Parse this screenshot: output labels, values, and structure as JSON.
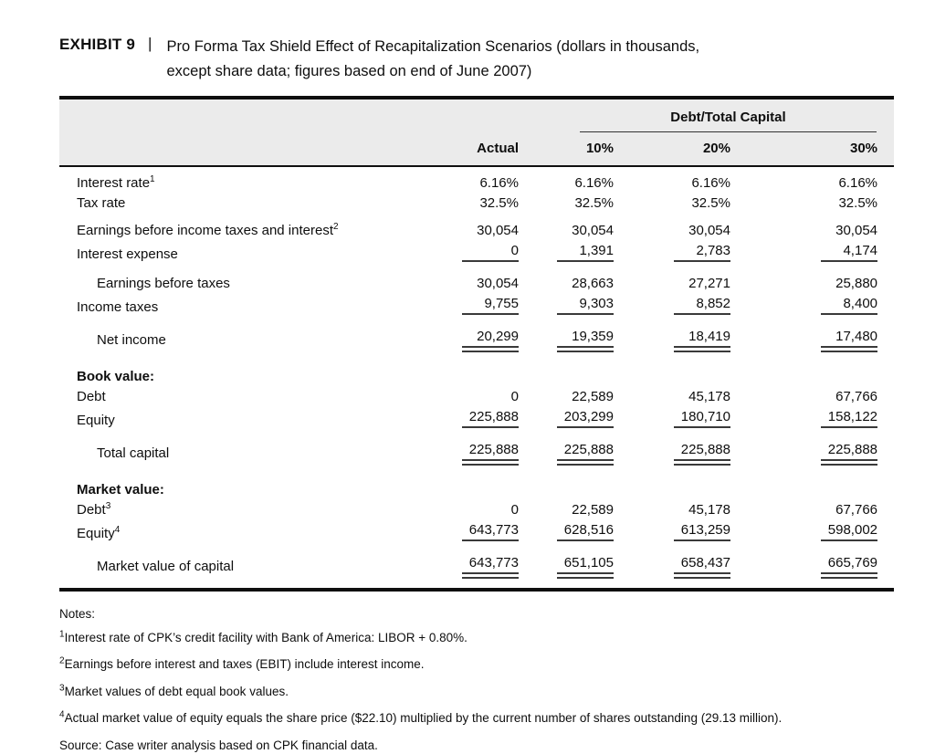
{
  "exhibit": {
    "label": "EXHIBIT 9",
    "separator": "|",
    "title_line1": "Pro Forma Tax Shield Effect of Recapitalization Scenarios (dollars in thousands,",
    "title_line2": "except share data; figures based on end of June 2007)"
  },
  "table": {
    "group_header": "Debt/Total Capital",
    "columns": {
      "actual": "Actual",
      "d10": "10%",
      "d20": "20%",
      "d30": "30%"
    },
    "rows": [
      {
        "label": "Interest rate",
        "sup": "1",
        "values": [
          "6.16%",
          "6.16%",
          "6.16%",
          "6.16%"
        ]
      },
      {
        "label": "Tax rate",
        "sup": "",
        "values": [
          "32.5%",
          "32.5%",
          "32.5%",
          "32.5%"
        ]
      },
      {
        "label": "Earnings before income taxes and interest",
        "sup": "2",
        "values": [
          "30,054",
          "30,054",
          "30,054",
          "30,054"
        ]
      },
      {
        "label": "Interest expense",
        "sup": "",
        "values": [
          "0",
          "1,391",
          "2,783",
          "4,174"
        ]
      },
      {
        "label": "Earnings before taxes",
        "sup": "",
        "values": [
          "30,054",
          "28,663",
          "27,271",
          "25,880"
        ]
      },
      {
        "label": "Income taxes",
        "sup": "",
        "values": [
          "9,755",
          "9,303",
          "8,852",
          "8,400"
        ]
      },
      {
        "label": "Net income",
        "sup": "",
        "values": [
          "20,299",
          "19,359",
          "18,419",
          "17,480"
        ]
      },
      {
        "label": "Book value:",
        "sup": "",
        "values": [
          "",
          "",
          "",
          ""
        ]
      },
      {
        "label": "Debt",
        "sup": "",
        "values": [
          "0",
          "22,589",
          "45,178",
          "67,766"
        ]
      },
      {
        "label": "Equity",
        "sup": "",
        "values": [
          "225,888",
          "203,299",
          "180,710",
          "158,122"
        ]
      },
      {
        "label": "Total capital",
        "sup": "",
        "values": [
          "225,888",
          "225,888",
          "225,888",
          "225,888"
        ]
      },
      {
        "label": "Market value:",
        "sup": "",
        "values": [
          "",
          "",
          "",
          ""
        ]
      },
      {
        "label": "Debt",
        "sup": "3",
        "values": [
          "0",
          "22,589",
          "45,178",
          "67,766"
        ]
      },
      {
        "label": "Equity",
        "sup": "4",
        "values": [
          "643,773",
          "628,516",
          "613,259",
          "598,002"
        ]
      },
      {
        "label": "Market value of capital",
        "sup": "",
        "values": [
          "643,773",
          "651,105",
          "658,437",
          "665,769"
        ]
      }
    ]
  },
  "notes": {
    "heading": "Notes:",
    "items": [
      {
        "sup": "1",
        "text": "Interest rate of CPK’s credit facility with Bank of America: LIBOR + 0.80%."
      },
      {
        "sup": "2",
        "text": "Earnings before interest and taxes (EBIT) include interest income."
      },
      {
        "sup": "3",
        "text": "Market values of debt equal book values."
      },
      {
        "sup": "4",
        "text": "Actual market value of equity equals the share price ($22.10) multiplied by the current number of shares outstanding (29.13 million)."
      }
    ],
    "source": "Source: Case writer analysis based on CPK financial data."
  }
}
